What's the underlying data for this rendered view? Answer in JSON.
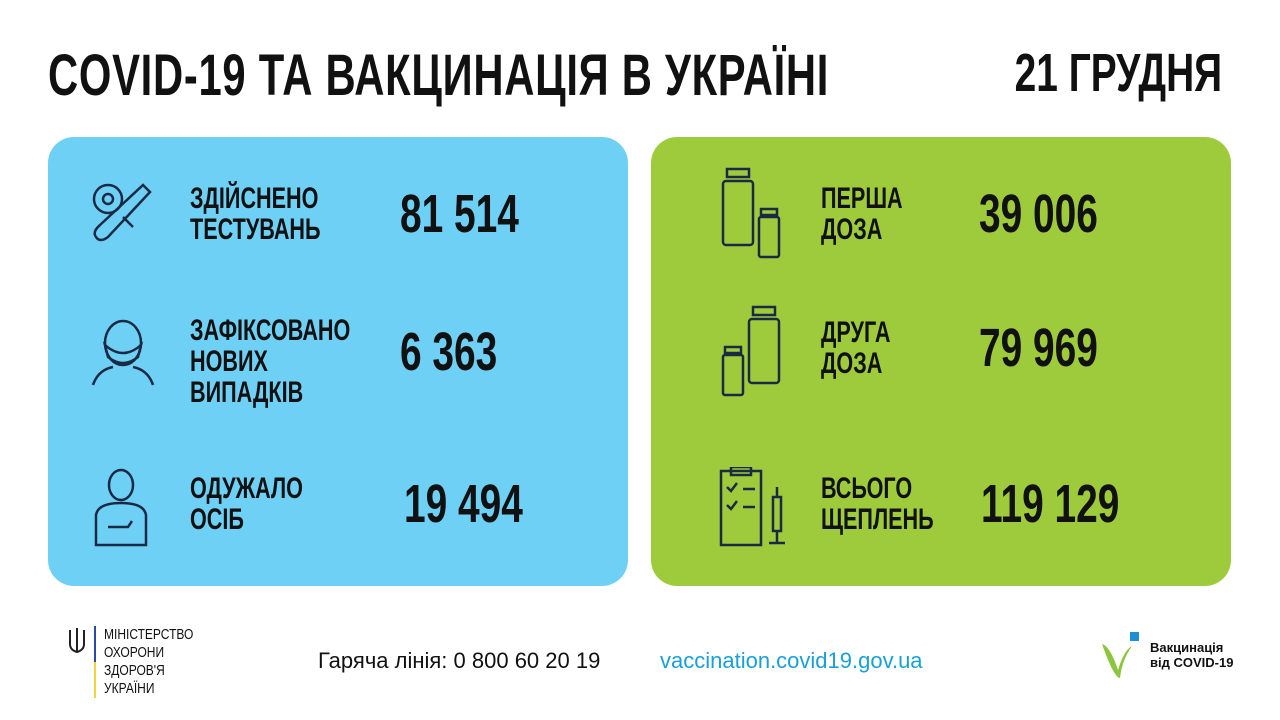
{
  "header": {
    "title": "COVID-19 ТА ВАКЦИНАЦІЯ В УКРАЇНІ",
    "date": "21 ГРУДНЯ"
  },
  "colors": {
    "covid_panel": "#6fd0f6",
    "vaccine_panel": "#9ecb3c",
    "link": "#1aa0d8"
  },
  "covid": [
    {
      "icon": "test-tube-virus-icon",
      "label": [
        "ЗДІЙСНЕНО",
        "ТЕСТУВАНЬ"
      ],
      "value": "81 514"
    },
    {
      "icon": "masked-person-icon",
      "label": [
        "ЗАФІКСОВАНО",
        "НОВИХ",
        "ВИПАДКІВ"
      ],
      "value": "6 363"
    },
    {
      "icon": "recovered-person-icon",
      "label": [
        "ОДУЖАЛО",
        "ОСІБ"
      ],
      "value": "19 494"
    }
  ],
  "vaccine": [
    {
      "icon": "vaccine-vials-icon",
      "label": [
        "ПЕРША",
        "ДОЗА"
      ],
      "value": "39 006"
    },
    {
      "icon": "vaccine-vials-icon",
      "label": [
        "ДРУГА",
        "ДОЗА"
      ],
      "value": "79 969"
    },
    {
      "icon": "clipboard-syringe-icon",
      "label": [
        "ВСЬОГО",
        "ЩЕПЛЕНЬ"
      ],
      "value": "119 129"
    }
  ],
  "footer": {
    "ministry": [
      "МІНІСТЕРСТВО",
      "ОХОРОНИ",
      "ЗДОРОВ'Я",
      "УКРАЇНИ"
    ],
    "hotline": "Гаряча лінія: 0 800 60 20 19",
    "site": "vaccination.covid19.gov.ua",
    "vaccine_logo": [
      "Вакцинація",
      "від COVID-19"
    ]
  }
}
